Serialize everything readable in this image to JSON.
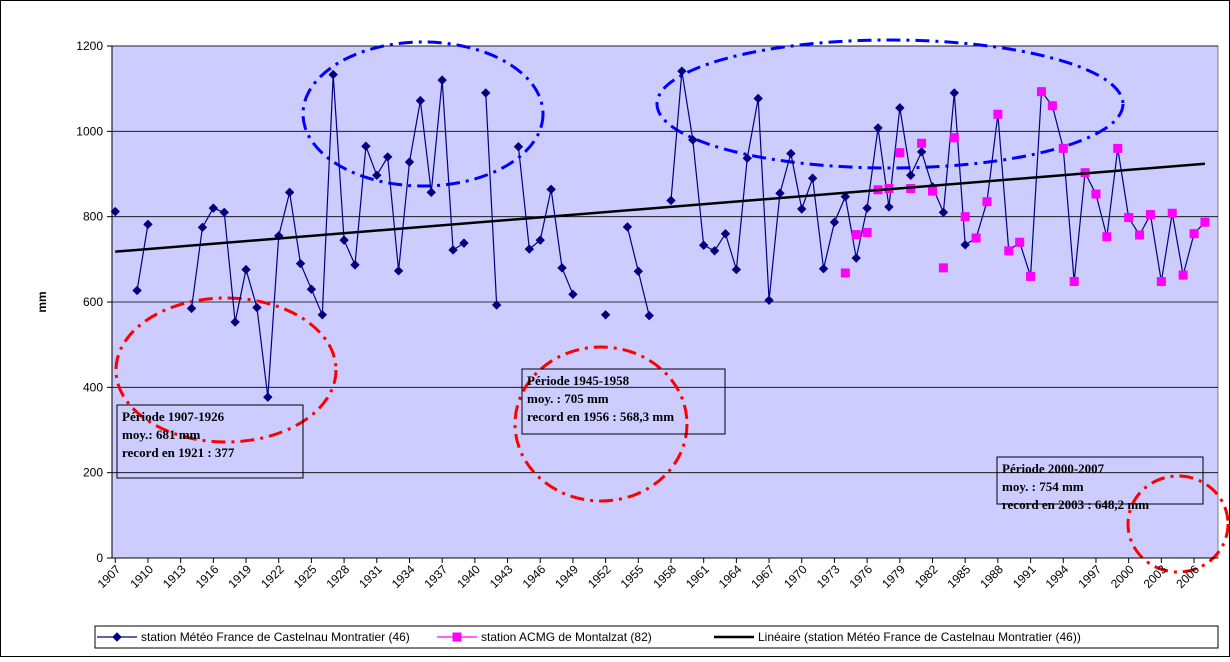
{
  "chart_data": {
    "type": "line",
    "y_label": "mm",
    "ylim": [
      0,
      1200
    ],
    "yticks": [
      0,
      200,
      400,
      600,
      800,
      1000,
      1200
    ],
    "grid": true,
    "xlim": [
      1906.7,
      2008.2
    ],
    "xticks": [
      1907,
      1910,
      1913,
      1916,
      1919,
      1922,
      1925,
      1928,
      1931,
      1934,
      1937,
      1940,
      1943,
      1946,
      1949,
      1952,
      1955,
      1958,
      1961,
      1964,
      1967,
      1970,
      1973,
      1976,
      1979,
      1982,
      1985,
      1988,
      1991,
      1994,
      1997,
      2000,
      2003,
      2006
    ],
    "x": [
      1907,
      1908,
      1909,
      1910,
      1911,
      1912,
      1913,
      1914,
      1915,
      1916,
      1917,
      1918,
      1919,
      1920,
      1921,
      1922,
      1923,
      1924,
      1925,
      1926,
      1927,
      1928,
      1929,
      1930,
      1931,
      1932,
      1933,
      1934,
      1935,
      1936,
      1937,
      1938,
      1939,
      1940,
      1941,
      1942,
      1943,
      1944,
      1945,
      1946,
      1947,
      1948,
      1949,
      1950,
      1951,
      1952,
      1953,
      1954,
      1955,
      1956,
      1957,
      1958,
      1959,
      1960,
      1961,
      1962,
      1963,
      1964,
      1965,
      1966,
      1967,
      1968,
      1969,
      1970,
      1971,
      1972,
      1973,
      1974,
      1975,
      1976,
      1977,
      1978,
      1979,
      1980,
      1981,
      1982,
      1983,
      1984,
      1985,
      1986,
      1987,
      1988,
      1989,
      1990,
      1991,
      1992,
      1993,
      1994,
      1995,
      1996,
      1997,
      1998,
      1999,
      2000,
      2001,
      2002,
      2003,
      2004,
      2005,
      2006,
      2007
    ],
    "series": [
      {
        "name": "station Météo France de Castelnau Montratier (46)",
        "color": "#000080",
        "marker": "diamond",
        "line": true,
        "values": [
          812,
          null,
          627,
          782,
          null,
          null,
          null,
          585,
          775,
          820,
          810,
          553,
          676,
          587,
          377,
          755,
          857,
          690,
          630,
          570,
          1133,
          745,
          687,
          965,
          897,
          940,
          673,
          928,
          1072,
          857,
          1120,
          722,
          738,
          null,
          1090,
          593,
          null,
          964,
          724,
          745,
          864,
          680,
          618,
          null,
          null,
          570,
          null,
          776,
          672,
          568,
          null,
          838,
          1141,
          980,
          733,
          720,
          760,
          676,
          937,
          1077,
          604,
          855,
          948,
          818,
          890,
          678,
          787,
          847,
          703,
          820,
          1008,
          823,
          1055,
          897,
          952,
          870,
          810,
          1090,
          734,
          750,
          835,
          1040,
          720,
          740,
          660,
          1093,
          1060,
          960,
          648,
          903,
          853,
          753,
          960,
          798,
          757,
          805,
          648,
          808,
          663,
          760,
          787
        ]
      },
      {
        "name": "station ACMG de Montalzat (82)",
        "color": "#ff00ff",
        "marker": "square",
        "line": false,
        "values": [
          null,
          null,
          null,
          null,
          null,
          null,
          null,
          null,
          null,
          null,
          null,
          null,
          null,
          null,
          null,
          null,
          null,
          null,
          null,
          null,
          null,
          null,
          null,
          null,
          null,
          null,
          null,
          null,
          null,
          null,
          null,
          null,
          null,
          null,
          null,
          null,
          null,
          null,
          null,
          null,
          null,
          null,
          null,
          null,
          null,
          null,
          null,
          null,
          null,
          null,
          null,
          null,
          null,
          null,
          null,
          null,
          null,
          null,
          null,
          null,
          null,
          null,
          null,
          null,
          null,
          null,
          null,
          668,
          758,
          763,
          863,
          866,
          950,
          866,
          972,
          860,
          680,
          985,
          800,
          750,
          835,
          1040,
          720,
          740,
          660,
          1093,
          1060,
          960,
          648,
          903,
          853,
          753,
          960,
          798,
          757,
          805,
          648,
          808,
          663,
          760,
          787
        ]
      },
      {
        "name": "Linéaire (station Météo France de Castelnau Montratier (46))",
        "color": "#000000",
        "marker": "none",
        "line": true,
        "x": [
          1907,
          2007
        ],
        "values": [
          718,
          924
        ]
      }
    ],
    "annotations": [
      {
        "lines": [
          "Période 1907-1926",
          "moy.: 681 mm",
          "record en 1921 : 377"
        ]
      },
      {
        "lines": [
          "Période 1945-1958",
          "moy. : 705 mm",
          "record en 1956 : 568,3 mm"
        ]
      },
      {
        "lines": [
          "Période 2000-2007",
          "moy. : 754 mm",
          "record en 2003 : 648,2 mm"
        ]
      }
    ]
  }
}
